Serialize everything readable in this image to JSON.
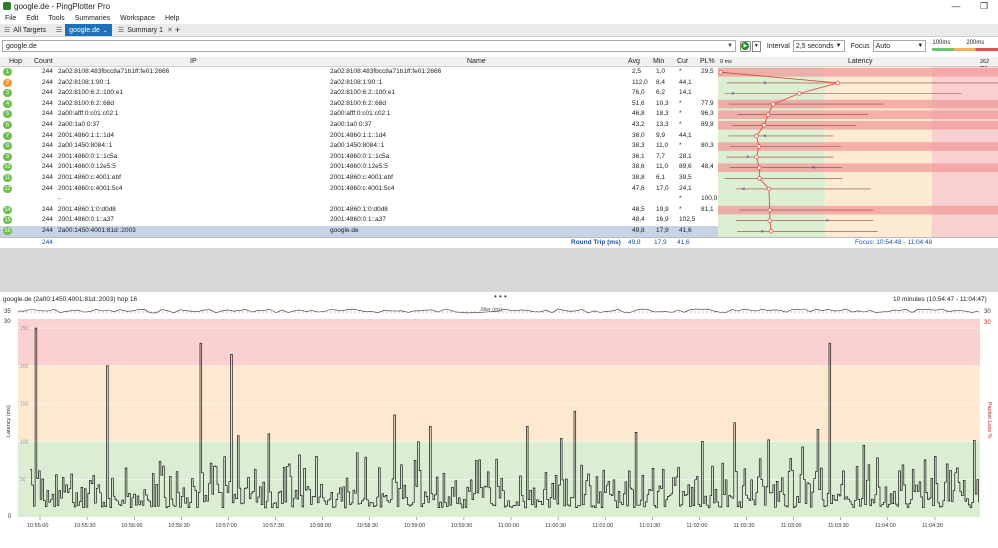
{
  "window": {
    "title": "google.de - PingPlotter Pro",
    "minimize": "—",
    "maximize": "❐"
  },
  "menu": [
    "File",
    "Edit",
    "Tools",
    "Summaries",
    "Workspace",
    "Help"
  ],
  "tabs": {
    "all_targets": "All Targets",
    "target": "google.de",
    "summary": "Summary 1",
    "close": "✕",
    "add": "+"
  },
  "toolbar": {
    "target_value": "google.de",
    "interval_label": "Interval",
    "interval_value": "2,5 seconds",
    "focus_label": "Focus",
    "focus_value": "Auto",
    "legend_100": "100ms",
    "legend_200": "200ms"
  },
  "grid": {
    "headers": {
      "hop": "Hop",
      "count": "Count",
      "ip": "IP",
      "name": "Name",
      "avg": "Avg",
      "min": "Min",
      "cur": "Cur",
      "pl": "PL%",
      "latency": "Latency",
      "scale_min": "0 ms",
      "scale_max": "262 ms"
    },
    "rows": [
      {
        "hop": "1",
        "count": "244",
        "ip": "2a02:8108:483fbcc8a71b1ff:fe01:2666",
        "name": "2a02:8108:483fbcc8a71b1ff:fe01:2666",
        "avg": "2,5",
        "min": "1,0",
        "cur": "*",
        "pl": "29,5",
        "color": "green"
      },
      {
        "hop": "2",
        "count": "244",
        "ip": "2a02:8108:1:90::1",
        "name": "2a02:8108:1:90::1",
        "avg": "112,0",
        "min": "8,4",
        "cur": "44,1",
        "pl": "",
        "color": "orange"
      },
      {
        "hop": "3",
        "count": "244",
        "ip": "2a02:8100:6:2::100:e1",
        "name": "2a02:8100:6:2::100:e1",
        "avg": "76,0",
        "min": "6,2",
        "cur": "14,1",
        "pl": "",
        "color": "green"
      },
      {
        "hop": "4",
        "count": "244",
        "ip": "2a02:8100:6:2::68d",
        "name": "2a02:8100:6:2::68d",
        "avg": "51,6",
        "min": "10,3",
        "cur": "*",
        "pl": "77,9",
        "color": "green"
      },
      {
        "hop": "5",
        "count": "244",
        "ip": "2a00:afff:0:c01:c02:1",
        "name": "2a00:afff:0:c01:c02:1",
        "avg": "46,8",
        "min": "18,3",
        "cur": "*",
        "pl": "96,3",
        "color": "green"
      },
      {
        "hop": "6",
        "count": "244",
        "ip": "2a00:1a0:0:37",
        "name": "2a00:1a0:0:37",
        "avg": "43,2",
        "min": "13,3",
        "cur": "*",
        "pl": "89,8",
        "color": "green"
      },
      {
        "hop": "7",
        "count": "244",
        "ip": "2001:4860:1:1::1d4",
        "name": "2001:4860:1:1::1d4",
        "avg": "36,0",
        "min": "9,9",
        "cur": "44,1",
        "pl": "",
        "color": "green"
      },
      {
        "hop": "8",
        "count": "244",
        "ip": "2a00:1450:8084::1",
        "name": "2a00:1450:8084::1",
        "avg": "38,3",
        "min": "11,0",
        "cur": "*",
        "pl": "80,3",
        "color": "green"
      },
      {
        "hop": "9",
        "count": "244",
        "ip": "2001:4860:0:1::1c5a",
        "name": "2001:4860:0:1::1c5a",
        "avg": "36,1",
        "min": "7,7",
        "cur": "28,1",
        "pl": "",
        "color": "green"
      },
      {
        "hop": "10",
        "count": "244",
        "ip": "2001:4860:0:12e5:5",
        "name": "2001:4860:0:12e5:5",
        "avg": "38,6",
        "min": "11,0",
        "cur": "89,6",
        "pl": "48,4",
        "color": "green"
      },
      {
        "hop": "11",
        "count": "244",
        "ip": "2001:4860:c:4001:ebf",
        "name": "2001:4860:c:4001:ebf",
        "avg": "38,8",
        "min": "6,1",
        "cur": "39,5",
        "pl": "",
        "color": "green"
      },
      {
        "hop": "12",
        "count": "244",
        "ip": "2001:4860:c:4001:5c4",
        "name": "2001:4860:c:4001:5c4",
        "avg": "47,6",
        "min": "17,0",
        "cur": "24,1",
        "pl": "",
        "color": "green"
      },
      {
        "hop": "",
        "count": "",
        "ip": "-",
        "name": "",
        "avg": "",
        "min": "",
        "cur": "*",
        "pl": "100,0",
        "color": "none"
      },
      {
        "hop": "14",
        "count": "244",
        "ip": "2001:4860:1:0:d0d8",
        "name": "2001:4860:1:0:d0d8",
        "avg": "48,5",
        "min": "19,9",
        "cur": "*",
        "pl": "81,1",
        "color": "green"
      },
      {
        "hop": "15",
        "count": "244",
        "ip": "2001:4860:0:1::a37",
        "name": "2001:4860:0:1::a37",
        "avg": "48,4",
        "min": "16,9",
        "cur": "102,5",
        "pl": "",
        "color": "green"
      },
      {
        "hop": "16",
        "count": "244",
        "ip": "2a00:1450:4001:81d::2003",
        "name": "google.de",
        "avg": "49,8",
        "min": "17,9",
        "cur": "41,6",
        "pl": "",
        "color": "green"
      }
    ],
    "round_trip": {
      "count": "244",
      "label": "Round Trip (ms)",
      "avg": "49,8",
      "min": "17,9",
      "cur": "41,6",
      "focus": "Focus: 10:54:48 - 11:04:48"
    }
  },
  "splitter_dots": "• • •",
  "graph": {
    "title": "google.de (2a00:1450:4001:81d::2003) hop 16",
    "range": "10 minutes (10:54:47 - 11:04:47)",
    "jitter_label": "Jitter (ms)",
    "jitter_left": "35",
    "jitter_right": "30",
    "y_left_label": "Latency (ms)",
    "y_right_label": "Packet Loss %",
    "y_left_top": "30",
    "y_left_zero": "0",
    "y_right_top": "30",
    "y_ticks": [
      "250",
      "200",
      "150",
      "100",
      "50"
    ],
    "x_ticks": [
      "10:55:00",
      "10:55:30",
      "10:56:00",
      "10:56:30",
      "10:57:00",
      "10:57:30",
      "10:58:00",
      "10:58:30",
      "10:59:00",
      "10:59:30",
      "11:00:00",
      "11:00:30",
      "11:01:00",
      "11:01:30",
      "11:02:00",
      "11:02:30",
      "11:03:00",
      "11:03:30",
      "11:04:00",
      "11:04:30"
    ]
  },
  "colors": {
    "accent": "#1d71b8",
    "good": "#d9ecd0",
    "warn": "#fdebcf",
    "bad": "#f7c9c9",
    "line": "#e04a3f"
  }
}
